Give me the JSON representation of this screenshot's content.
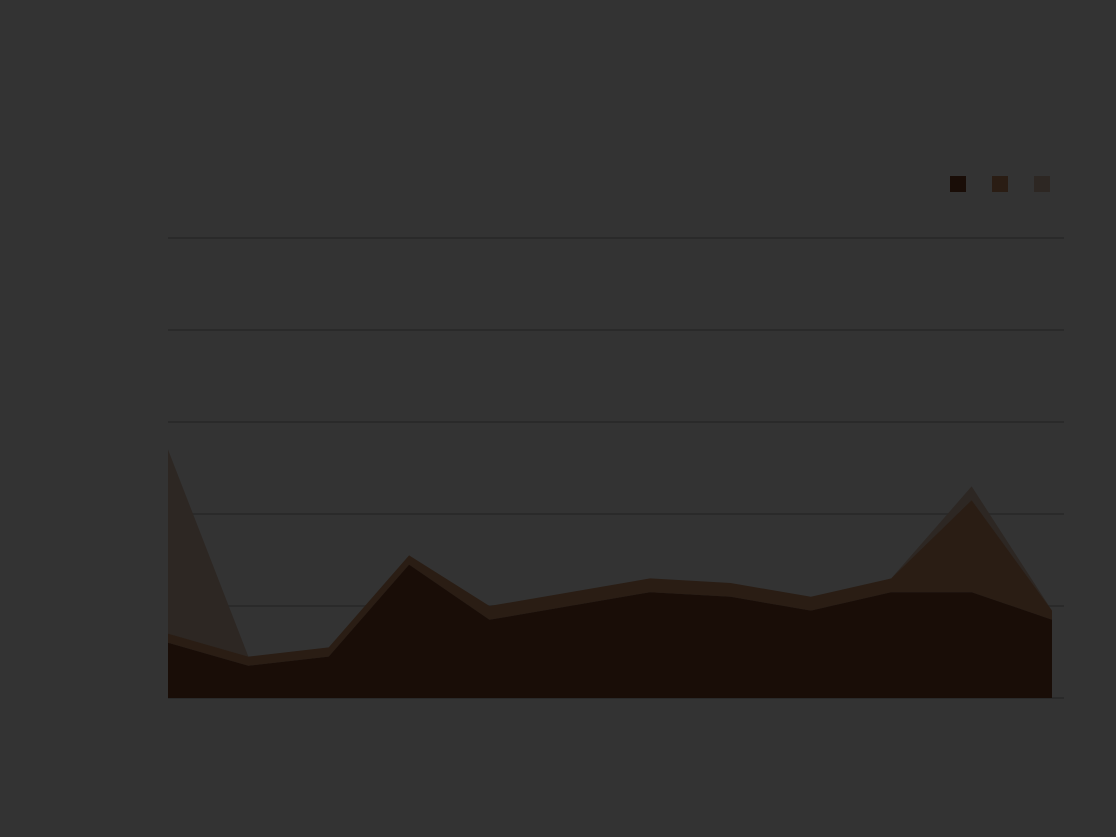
{
  "chart_data": {
    "type": "area",
    "stacked": true,
    "title": "",
    "xlabel": "",
    "ylabel": "",
    "categories": [
      "",
      "",
      "",
      "",
      "",
      "",
      "",
      "",
      "",
      "",
      "",
      ""
    ],
    "series": [
      {
        "name": "",
        "color": "#190d07",
        "values": [
          12,
          7,
          9,
          29,
          17,
          20,
          23,
          22,
          19,
          23,
          23,
          17
        ]
      },
      {
        "name": "",
        "color": "#2a1d14",
        "values": [
          2,
          2,
          2,
          2,
          3,
          3,
          3,
          3,
          3,
          3,
          20,
          2
        ]
      },
      {
        "name": "",
        "color": "#2d2723",
        "values": [
          40,
          0,
          0,
          0,
          0,
          0,
          0,
          0,
          0,
          0,
          3,
          0
        ]
      }
    ],
    "yticks": [
      "",
      "",
      "",
      "",
      "",
      ""
    ],
    "ylim": [
      0,
      100
    ],
    "grid": true,
    "legend_position": "top-right"
  }
}
